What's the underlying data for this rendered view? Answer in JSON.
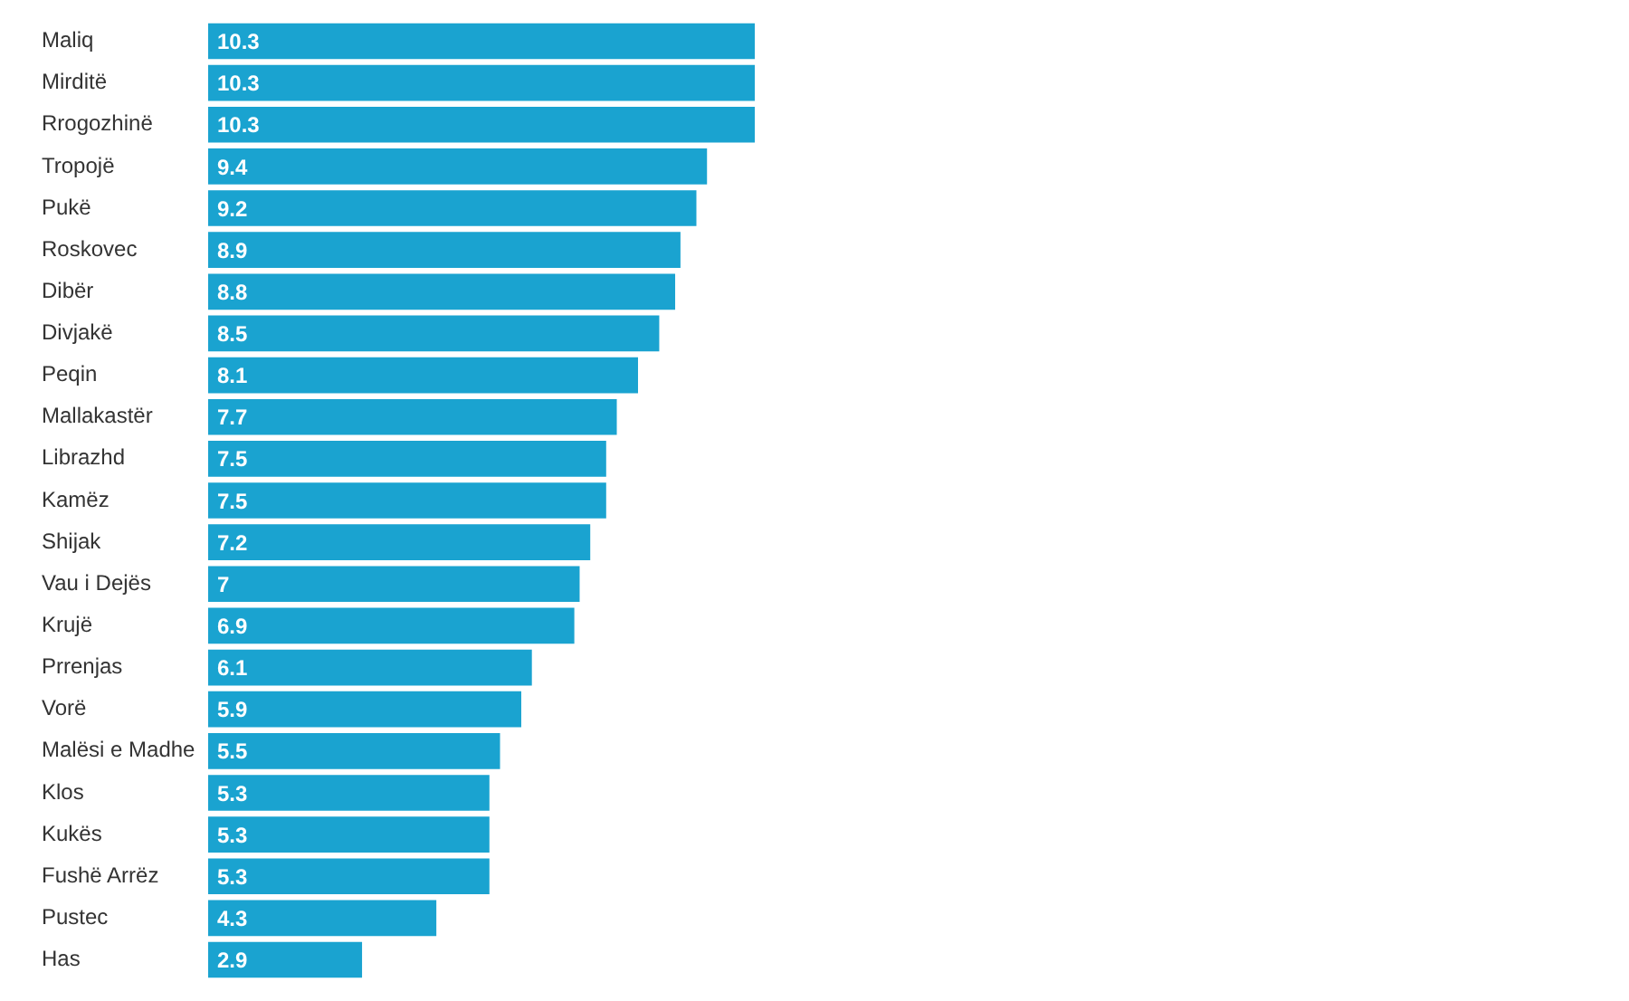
{
  "chart_data": {
    "type": "bar",
    "orientation": "horizontal",
    "categories": [
      "Maliq",
      "Mirditë",
      "Rrogozhinë",
      "Tropojë",
      "Pukë",
      "Roskovec",
      "Dibër",
      "Divjakë",
      "Peqin",
      "Mallakastër",
      "Librazhd",
      "Kamëz",
      "Shijak",
      "Vau i Dejës",
      "Krujë",
      "Prrenjas",
      "Vorë",
      "Malësi e Madhe",
      "Klos",
      "Kukës",
      "Fushë Arrëz",
      "Pustec",
      "Has"
    ],
    "values": [
      10.3,
      10.3,
      10.3,
      9.4,
      9.2,
      8.9,
      8.8,
      8.5,
      8.1,
      7.7,
      7.5,
      7.5,
      7.2,
      7,
      6.9,
      6.1,
      5.9,
      5.5,
      5.3,
      5.3,
      5.3,
      4.3,
      2.9
    ],
    "color": "#1aa3d0",
    "data_labels": true
  }
}
